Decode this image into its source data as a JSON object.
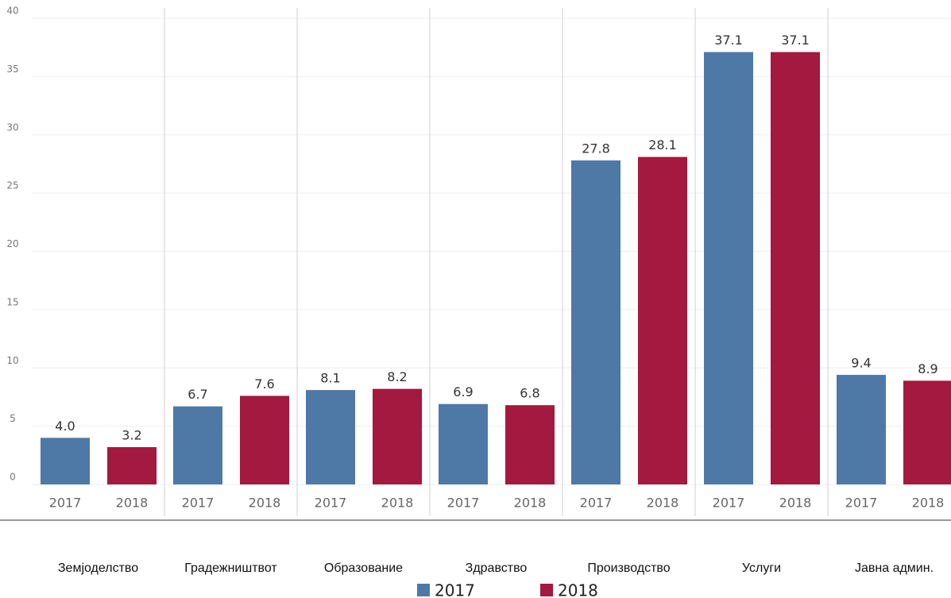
{
  "chart_data": {
    "type": "bar",
    "categories": [
      "Земјоделство",
      "Градежништвот",
      "Образование",
      "Здравство",
      "Производство",
      "Услуги",
      "Јавна админ."
    ],
    "series": [
      {
        "name": "2017",
        "color": "#4e79a7",
        "values": [
          4.0,
          6.7,
          8.1,
          6.9,
          27.8,
          37.1,
          9.4
        ],
        "value_labels": [
          "4.0",
          "6.7",
          "8.1",
          "6.9",
          "27.8",
          "37.1",
          "9.4"
        ]
      },
      {
        "name": "2018",
        "color": "#a3193f",
        "values": [
          3.2,
          7.6,
          8.2,
          6.8,
          28.1,
          37.1,
          8.9
        ],
        "value_labels": [
          "3.2",
          "7.6",
          "8.2",
          "6.8",
          "28.1",
          "37.1",
          "8.9"
        ]
      }
    ],
    "ylim": [
      0,
      40
    ],
    "yticks": [
      0,
      5,
      10,
      15,
      20,
      25,
      30,
      35,
      40
    ],
    "grid": true,
    "legend": "bottom"
  }
}
